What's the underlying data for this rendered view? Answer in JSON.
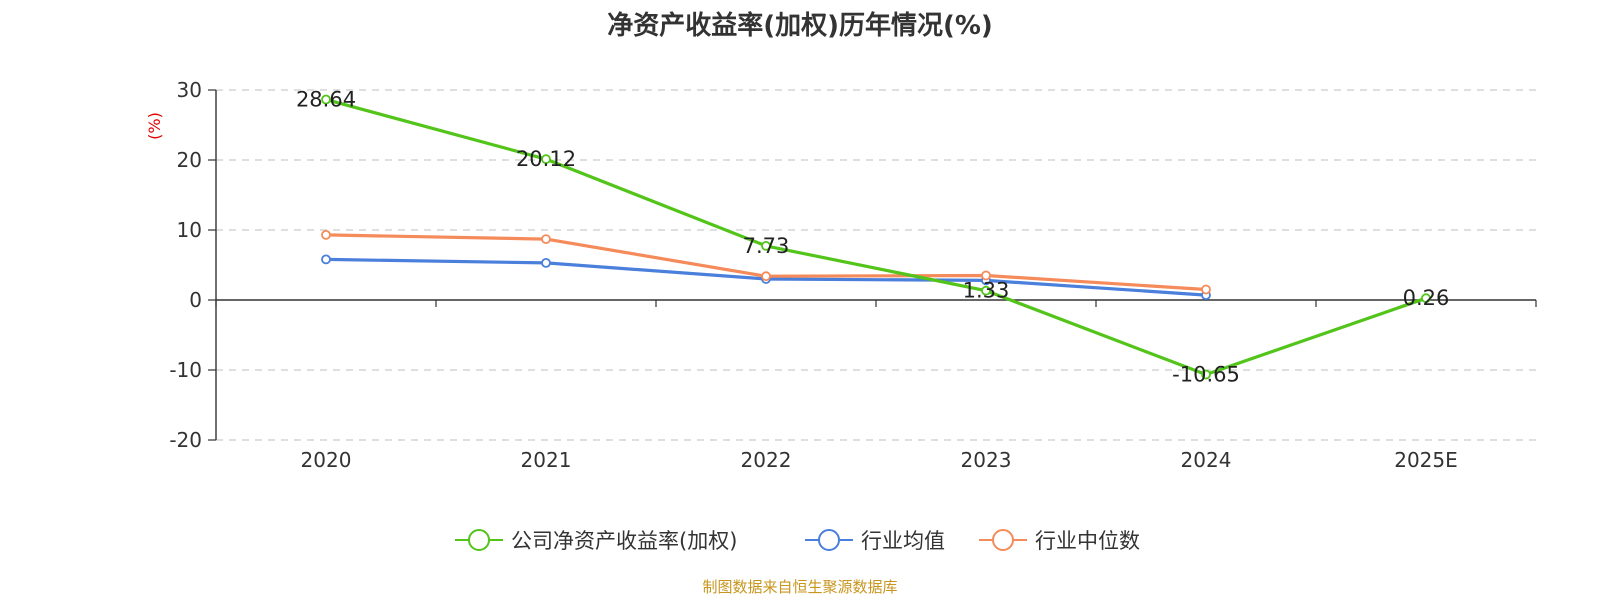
{
  "chart_data": {
    "type": "line",
    "title": "净资产收益率(加权)历年情况(%)",
    "ylabel": "(%)",
    "categories": [
      "2020",
      "2021",
      "2022",
      "2023",
      "2024",
      "2025E"
    ],
    "ylim": [
      -20,
      30
    ],
    "yticks": [
      30,
      20,
      10,
      0,
      -10,
      -20
    ],
    "grid": true,
    "legend_position": "bottom",
    "series": [
      {
        "name": "公司净资产收益率(加权)",
        "color": "#52c41a",
        "values": [
          28.64,
          20.12,
          7.73,
          1.33,
          -10.65,
          0.26
        ],
        "labels": [
          "28.64",
          "20.12",
          "7.73",
          "1.33",
          "-10.65",
          "0.26"
        ]
      },
      {
        "name": "行业均值",
        "color": "#4a7fdc",
        "values": [
          5.8,
          5.3,
          3.0,
          2.8,
          0.7,
          null
        ]
      },
      {
        "name": "行业中位数",
        "color": "#f58b5a",
        "values": [
          9.3,
          8.7,
          3.4,
          3.5,
          1.5,
          null
        ]
      }
    ],
    "source": "制图数据来自恒生聚源数据库"
  }
}
